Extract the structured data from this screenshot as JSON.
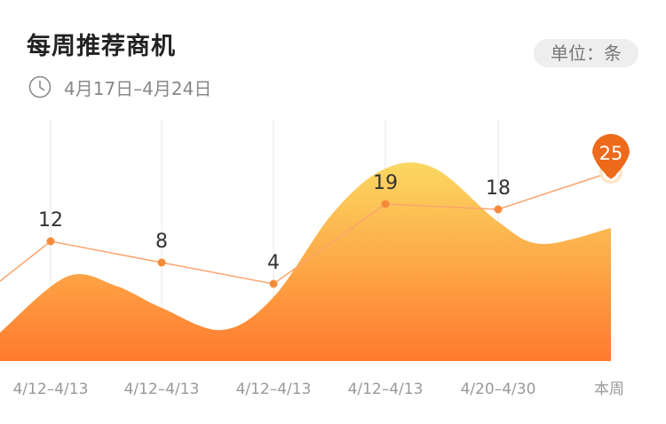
{
  "header": {
    "title": "每周推荐商机",
    "date_range": "4月17日–4月24日",
    "unit": "单位：条",
    "clock_icon": "clock-icon"
  },
  "chart_data": {
    "type": "line",
    "categories": [
      "4/12–4/13",
      "4/12–4/13",
      "4/12–4/13",
      "4/12–4/13",
      "4/20–4/30",
      "本周"
    ],
    "values": [
      12,
      8,
      4,
      19,
      18,
      25
    ],
    "highlight_index": 5,
    "colors": {
      "area_top": "#FBD862",
      "area_bottom": "#FF7A2E",
      "line": "#FBA56E",
      "point": "#F58B3A",
      "highlight_pin": "#EE6A1B"
    }
  }
}
